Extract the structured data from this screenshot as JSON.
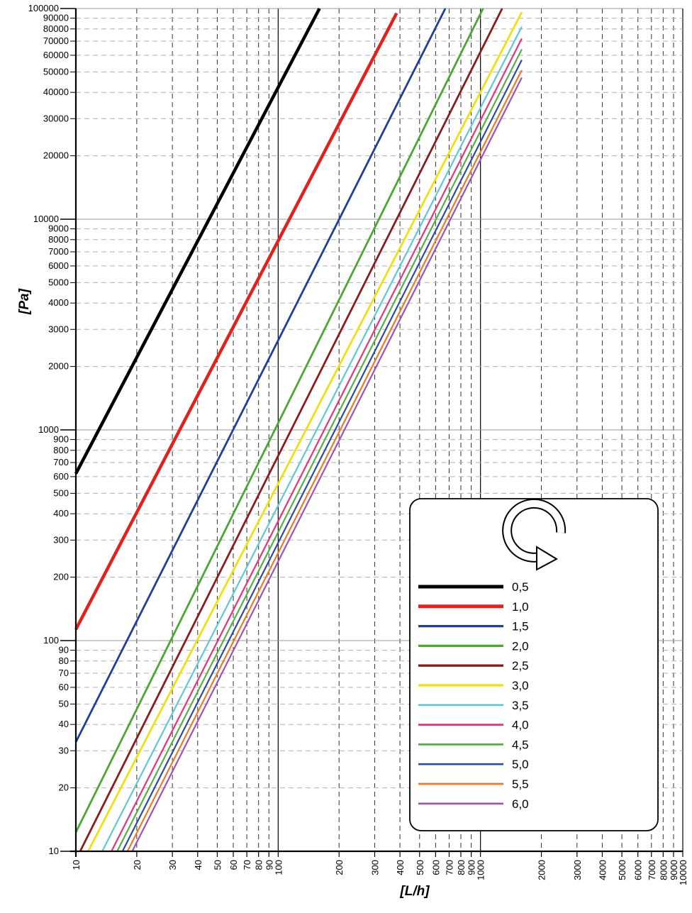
{
  "chart_data": {
    "type": "line",
    "title": "",
    "xlabel": "[L/h]",
    "ylabel": "[Pa]",
    "xscale": "log",
    "yscale": "log",
    "xlim": [
      10,
      10000
    ],
    "ylim": [
      10,
      100000
    ],
    "grid": true,
    "legend_position": "bottom-right",
    "legend_icon": "rotation-arrow-icon",
    "x_tick_labels": [
      "10",
      "20",
      "30",
      "40",
      "50",
      "60",
      "70",
      "80",
      "90",
      "100",
      "200",
      "300",
      "400",
      "500",
      "600",
      "700",
      "800",
      "900",
      "1000",
      "2000",
      "3000",
      "4000",
      "5000",
      "6000",
      "7000",
      "8000",
      "9000",
      "10000"
    ],
    "y_tick_labels": [
      "10",
      "20",
      "30",
      "40",
      "50",
      "60",
      "70",
      "80",
      "90",
      "100",
      "200",
      "300",
      "400",
      "500",
      "600",
      "700",
      "800",
      "900",
      "1000",
      "2000",
      "3000",
      "4000",
      "5000",
      "6000",
      "7000",
      "8000",
      "9000",
      "10000",
      "20000",
      "30000",
      "40000",
      "50000",
      "60000",
      "70000",
      "80000",
      "90000",
      "100000"
    ],
    "series": [
      {
        "name": "0,5",
        "color": "#000000",
        "width": 4.5,
        "x": [
          10,
          160
        ],
        "y": [
          620,
          100000
        ]
      },
      {
        "name": "1,0",
        "color": "#e3211c",
        "width": 4.5,
        "x": [
          10,
          385
        ],
        "y": [
          113,
          95000
        ]
      },
      {
        "name": "1,5",
        "color": "#1f3f99",
        "width": 2.8,
        "x": [
          10,
          670
        ],
        "y": [
          33,
          100000
        ]
      },
      {
        "name": "2,0",
        "color": "#4aa832",
        "width": 2.8,
        "x": [
          10,
          1030
        ],
        "y": [
          12.3,
          100000
        ]
      },
      {
        "name": "2,5",
        "color": "#8e1b1b",
        "width": 2.8,
        "x": [
          10.5,
          1280
        ],
        "y": [
          10,
          100000
        ]
      },
      {
        "name": "3,0",
        "color": "#f0e010",
        "width": 2.8,
        "x": [
          11.5,
          1600
        ],
        "y": [
          10,
          96000
        ]
      },
      {
        "name": "3,5",
        "color": "#5fc8d8",
        "width": 2.2,
        "x": [
          13.5,
          1600
        ],
        "y": [
          10,
          82000
        ]
      },
      {
        "name": "4,0",
        "color": "#e5337a",
        "width": 2.2,
        "x": [
          15,
          1600
        ],
        "y": [
          10,
          72000
        ]
      },
      {
        "name": "4,5",
        "color": "#56b040",
        "width": 2.2,
        "x": [
          16,
          1600
        ],
        "y": [
          10,
          64000
        ]
      },
      {
        "name": "5,0",
        "color": "#2b4ba8",
        "width": 2.2,
        "x": [
          17,
          1600
        ],
        "y": [
          10,
          57000
        ]
      },
      {
        "name": "5,5",
        "color": "#f07820",
        "width": 2.2,
        "x": [
          18,
          1600
        ],
        "y": [
          10,
          51000
        ]
      },
      {
        "name": "6,0",
        "color": "#a050b8",
        "width": 2.2,
        "x": [
          19,
          1600
        ],
        "y": [
          10,
          47000
        ]
      }
    ]
  }
}
